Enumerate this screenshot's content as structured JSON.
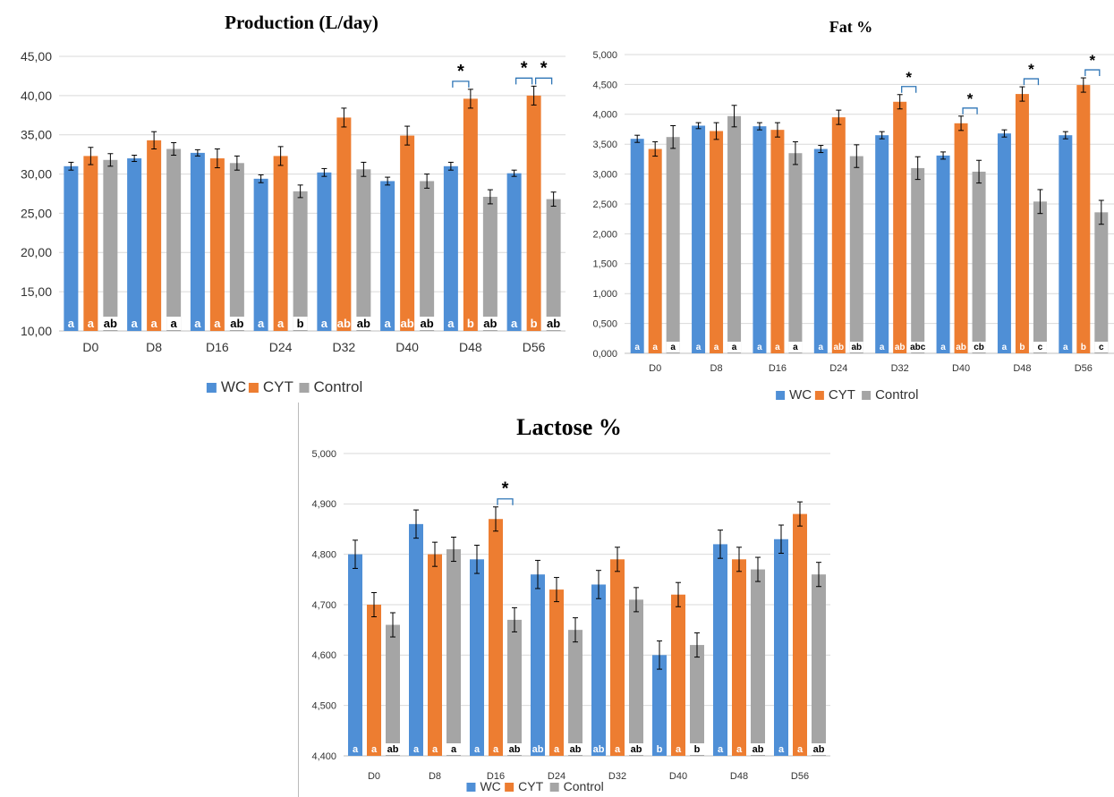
{
  "series_colors": {
    "WC": "#4f8fd6",
    "CYT": "#ed7d31",
    "Control": "#a5a5a5"
  },
  "chart_data": [
    {
      "type": "bar",
      "title": "Production (L/day)",
      "categories": [
        "D0",
        "D8",
        "D16",
        "D24",
        "D32",
        "D40",
        "D48",
        "D56"
      ],
      "ylim": [
        10,
        45
      ],
      "yticks": [
        "10,00",
        "15,00",
        "20,00",
        "25,00",
        "30,00",
        "35,00",
        "40,00",
        "45,00"
      ],
      "grid": true,
      "legend": "bottom",
      "series": [
        {
          "name": "WC",
          "values": [
            31.0,
            32.0,
            32.7,
            29.4,
            30.2,
            29.1,
            31.0,
            30.1
          ],
          "errors": [
            0.5,
            0.4,
            0.4,
            0.5,
            0.5,
            0.5,
            0.5,
            0.4
          ],
          "labels": [
            "a",
            "a",
            "a",
            "a",
            "a",
            "a",
            "a",
            "a"
          ]
        },
        {
          "name": "CYT",
          "values": [
            32.3,
            34.3,
            32.0,
            32.3,
            37.2,
            34.9,
            39.6,
            40.0
          ],
          "errors": [
            1.1,
            1.1,
            1.2,
            1.2,
            1.2,
            1.2,
            1.2,
            1.2
          ],
          "labels": [
            "a",
            "a",
            "a",
            "a",
            "ab",
            "ab",
            "b",
            "b"
          ]
        },
        {
          "name": "Control",
          "values": [
            31.8,
            33.2,
            31.4,
            27.8,
            30.6,
            29.1,
            27.1,
            26.8
          ],
          "errors": [
            0.8,
            0.8,
            0.9,
            0.8,
            0.9,
            0.9,
            0.9,
            0.9
          ],
          "labels": [
            "ab",
            "a",
            "ab",
            "b",
            "ab",
            "ab",
            "ab",
            "ab"
          ]
        }
      ],
      "significance": [
        {
          "category": "D48",
          "pairs": [
            "WC-CYT"
          ],
          "label": "*"
        },
        {
          "category": "D56",
          "pairs": [
            "WC-CYT",
            "CYT-Control"
          ],
          "label": "*"
        }
      ]
    },
    {
      "type": "bar",
      "title": "Fat %",
      "categories": [
        "D0",
        "D8",
        "D16",
        "D24",
        "D32",
        "D40",
        "D48",
        "D56"
      ],
      "ylim": [
        0,
        5
      ],
      "yticks": [
        "0,000",
        "0,500",
        "1,000",
        "1,500",
        "2,000",
        "2,500",
        "3,000",
        "3,500",
        "4,000",
        "4,500",
        "5,000"
      ],
      "grid": true,
      "legend": "bottom",
      "series": [
        {
          "name": "WC",
          "values": [
            3.59,
            3.81,
            3.8,
            3.42,
            3.65,
            3.31,
            3.68,
            3.65
          ],
          "errors": [
            0.06,
            0.05,
            0.06,
            0.06,
            0.06,
            0.06,
            0.06,
            0.06
          ],
          "labels": [
            "a",
            "a",
            "a",
            "a",
            "a",
            "a",
            "a",
            "a"
          ]
        },
        {
          "name": "CYT",
          "values": [
            3.42,
            3.72,
            3.74,
            3.95,
            4.21,
            3.85,
            4.34,
            4.49
          ],
          "errors": [
            0.12,
            0.14,
            0.12,
            0.12,
            0.12,
            0.12,
            0.12,
            0.12
          ],
          "labels": [
            "a",
            "a",
            "a",
            "ab",
            "ab",
            "ab",
            "b",
            "b"
          ]
        },
        {
          "name": "Control",
          "values": [
            3.62,
            3.97,
            3.35,
            3.3,
            3.1,
            3.04,
            2.54,
            2.36
          ],
          "errors": [
            0.19,
            0.18,
            0.19,
            0.19,
            0.19,
            0.19,
            0.2,
            0.2
          ],
          "labels": [
            "a",
            "a",
            "a",
            "ab",
            "abc",
            "cb",
            "c",
            "c"
          ]
        }
      ],
      "significance": [
        {
          "category": "D32",
          "pairs": [
            "CYT-Control"
          ],
          "label": "*"
        },
        {
          "category": "D40",
          "pairs": [
            "CYT-Control"
          ],
          "label": "*"
        },
        {
          "category": "D48",
          "pairs": [
            "CYT-Control"
          ],
          "label": "*"
        },
        {
          "category": "D56",
          "pairs": [
            "CYT-Control"
          ],
          "label": "*"
        }
      ]
    },
    {
      "type": "bar",
      "title": "Lactose %",
      "categories": [
        "D0",
        "D8",
        "D16",
        "D24",
        "D32",
        "D40",
        "D48",
        "D56"
      ],
      "ylim": [
        4.4,
        5.0
      ],
      "yticks": [
        "4,400",
        "4,500",
        "4,600",
        "4,700",
        "4,800",
        "4,900",
        "5,000"
      ],
      "grid": true,
      "legend": "bottom",
      "series": [
        {
          "name": "WC",
          "values": [
            4.8,
            4.86,
            4.79,
            4.76,
            4.74,
            4.6,
            4.82,
            4.83
          ],
          "errors": [
            0.028,
            0.028,
            0.028,
            0.028,
            0.028,
            0.028,
            0.028,
            0.028
          ],
          "labels": [
            "a",
            "a",
            "a",
            "ab",
            "ab",
            "b",
            "a",
            "a"
          ]
        },
        {
          "name": "CYT",
          "values": [
            4.7,
            4.8,
            4.87,
            4.73,
            4.79,
            4.72,
            4.79,
            4.88
          ],
          "errors": [
            0.024,
            0.024,
            0.024,
            0.024,
            0.024,
            0.024,
            0.024,
            0.024
          ],
          "labels": [
            "a",
            "a",
            "a",
            "a",
            "a",
            "a",
            "a",
            "a"
          ]
        },
        {
          "name": "Control",
          "values": [
            4.66,
            4.81,
            4.67,
            4.65,
            4.71,
            4.62,
            4.77,
            4.76
          ],
          "errors": [
            0.024,
            0.024,
            0.024,
            0.024,
            0.024,
            0.024,
            0.024,
            0.024
          ],
          "labels": [
            "ab",
            "a",
            "ab",
            "ab",
            "ab",
            "b",
            "ab",
            "ab"
          ]
        }
      ],
      "significance": [
        {
          "category": "D16",
          "pairs": [
            "CYT-Control"
          ],
          "label": "*"
        }
      ]
    }
  ]
}
